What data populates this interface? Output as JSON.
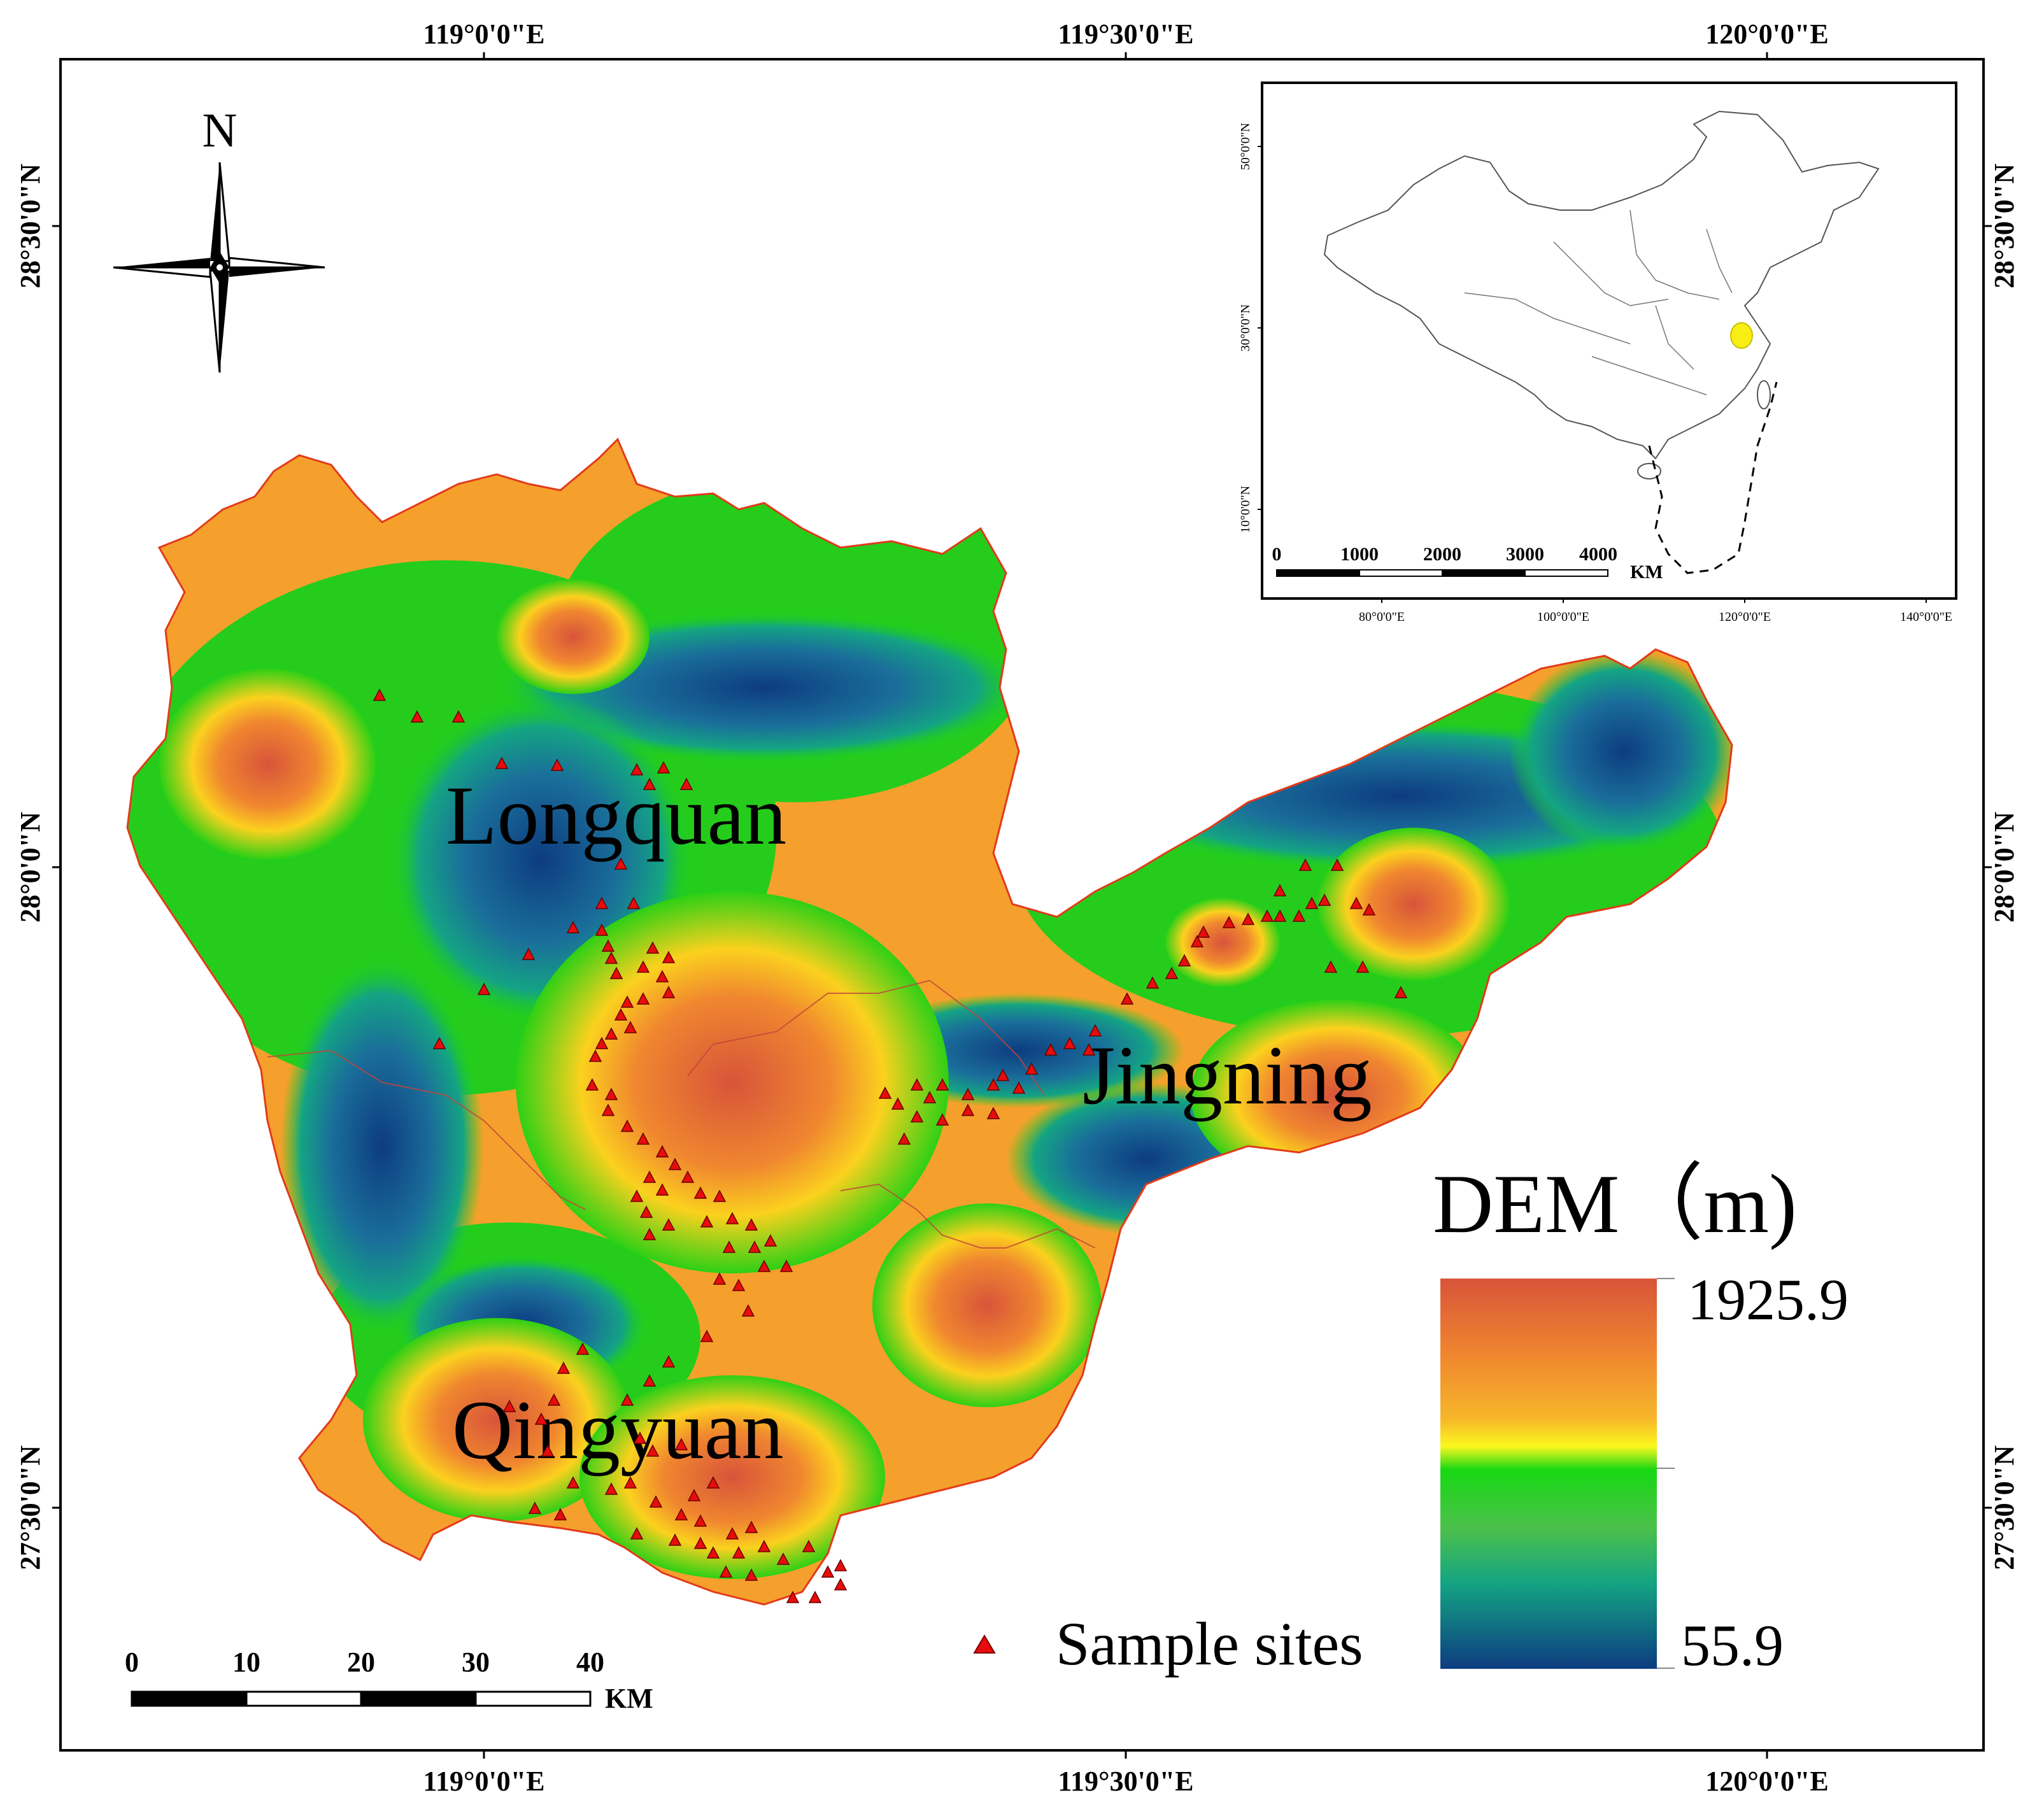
{
  "map": {
    "graticule": {
      "top_lon": [
        "119°0'0\"E",
        "119°30'0\"E",
        "120°0'0\"E"
      ],
      "bottom_lon": [
        "119°0'0\"E",
        "119°30'0\"E",
        "120°0'0\"E"
      ],
      "left_lat": [
        "28°30'0\"N",
        "28°0'0\"N",
        "27°30'0\"N"
      ],
      "right_lat": [
        "28°30'0\"N",
        "28°0'0\"N",
        "27°30'0\"N"
      ]
    },
    "north_arrow": {
      "label": "N"
    },
    "places": {
      "longquan": "Longquan",
      "jingning": "Jingning",
      "qingyuan": "Qingyuan"
    },
    "legend": {
      "title": "DEM（m)",
      "max": "1925.9",
      "min": "55.9",
      "sample_label": "Sample sites",
      "colors": {
        "high": "#d8543a",
        "upper": "#f5a02c",
        "mid_yellow": "#fbf81e",
        "mid_green": "#18d813",
        "lower": "#14a483",
        "low": "#0d3c80"
      }
    },
    "scale_bar": {
      "ticks": [
        "0",
        "10",
        "20",
        "30",
        "40"
      ],
      "unit": "KM"
    },
    "inset": {
      "lat_labels": [
        "50°0'0\"N",
        "30°0'0\"N",
        "10°0'0\"N"
      ],
      "lon_labels": [
        "80°0'0\"E",
        "100°0'0\"E",
        "120°0'0\"E",
        "140°0'0\"E"
      ],
      "scale_ticks": [
        "0",
        "1000",
        "2000",
        "3000",
        "4000"
      ],
      "scale_unit": "KM",
      "highlight_color": "#f7ee14"
    },
    "sample_color": "#e80c0c"
  }
}
